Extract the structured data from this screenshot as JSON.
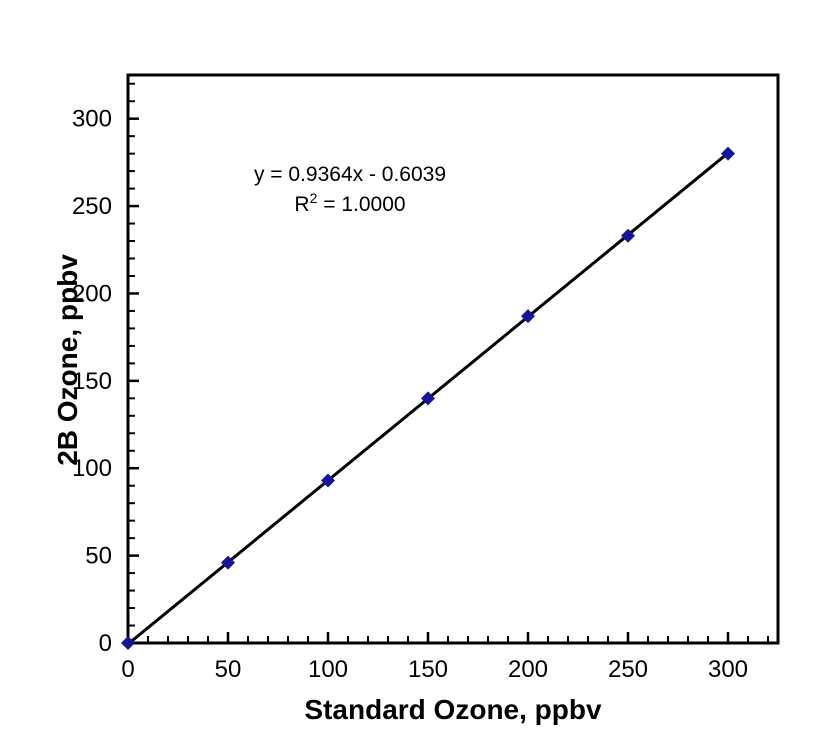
{
  "chart_data": {
    "type": "scatter",
    "title": "",
    "xlabel": "Standard Ozone, ppbv",
    "ylabel": "2B Ozone, ppbv",
    "x": [
      0,
      50,
      100,
      150,
      200,
      250,
      300
    ],
    "y": [
      0,
      46,
      93,
      140,
      187,
      233,
      280
    ],
    "xlim": [
      0,
      325
    ],
    "ylim": [
      0,
      325
    ],
    "x_major_ticks": [
      0,
      50,
      100,
      150,
      200,
      250,
      300
    ],
    "y_major_ticks": [
      0,
      50,
      100,
      150,
      200,
      250,
      300
    ],
    "major_tick_step": 50,
    "minor_tick_step": 10,
    "grid": false,
    "legend": "none",
    "marker": {
      "shape": "diamond",
      "color": "#15159b",
      "size": 14
    },
    "line": {
      "color": "#000000",
      "width": 3
    },
    "axis_color": "#000000",
    "trendline": {
      "slope": 0.9364,
      "intercept": -0.6039,
      "r_squared": "1.0000"
    },
    "annotation": {
      "equation": "y = 0.9364x - 0.6039",
      "r_squared_prefix": "R",
      "r_squared_sup": "2",
      "r_squared_suffix": " = 1.0000"
    }
  }
}
